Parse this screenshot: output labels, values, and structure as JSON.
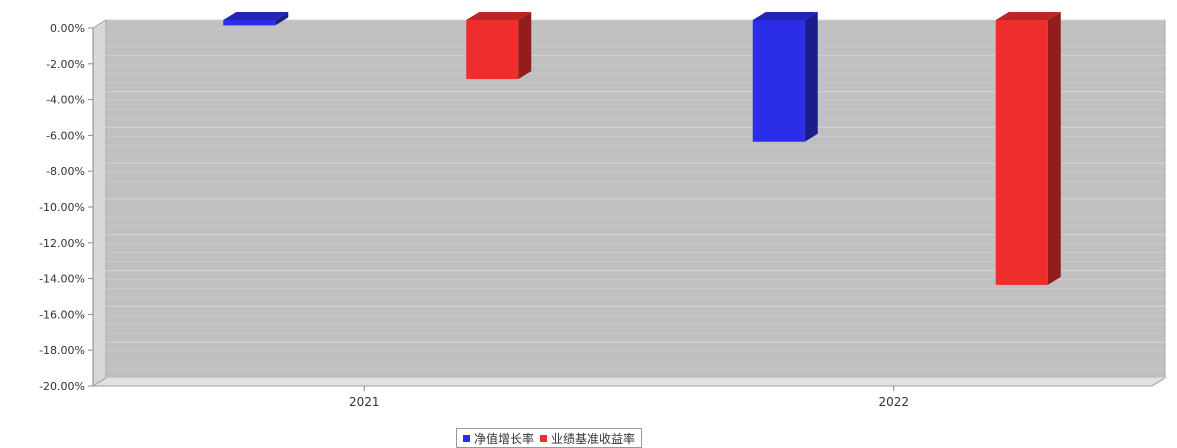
{
  "chart_data": {
    "type": "bar",
    "categories": [
      "2021",
      "2022"
    ],
    "series": [
      {
        "name": "净值增长率",
        "color": "#2b2ee6",
        "values": [
          -0.3,
          -6.8
        ]
      },
      {
        "name": "业绩基准收益率",
        "color": "#ee2d2d",
        "values": [
          -3.3,
          -14.8
        ]
      }
    ],
    "ylim": [
      -20,
      0
    ],
    "yticks": [
      "0.00%",
      "-2.00%",
      "-4.00%",
      "-6.00%",
      "-8.00%",
      "-10.00%",
      "-12.00%",
      "-14.00%",
      "-16.00%",
      "-18.00%",
      "-20.00%"
    ],
    "ytick_values": [
      0,
      -2,
      -4,
      -6,
      -8,
      -10,
      -12,
      -14,
      -16,
      -18,
      -20
    ],
    "grid": true,
    "legend_position": "bottom-center",
    "plot_background": "#c0c0c0"
  }
}
